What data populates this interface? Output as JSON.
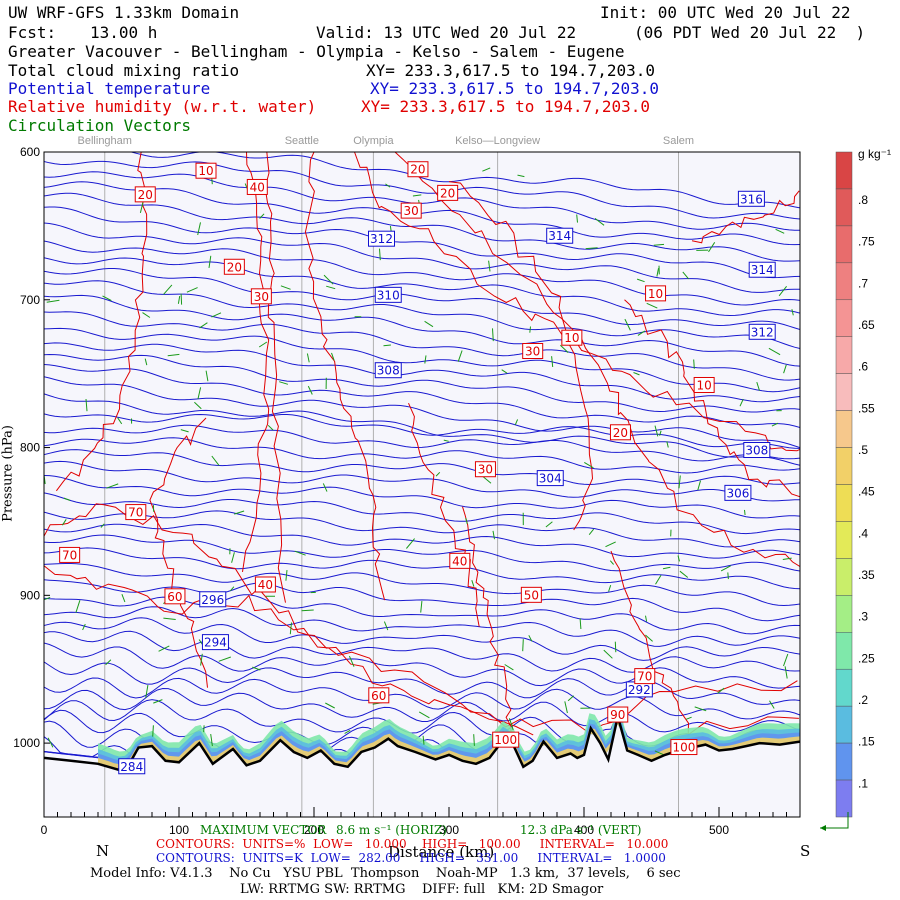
{
  "header": {
    "model_title": "UW WRF-GFS 1.33km Domain",
    "init": "Init: 00 UTC Wed 20 Jul 22",
    "fcst_label": "Fcst:",
    "fcst_value": "13.00 h",
    "valid": "Valid: 13 UTC Wed 20 Jul 22",
    "valid_local": "(06 PDT Wed 20 Jul 22  )",
    "region": "Greater Vacouver - Bellingham - Olympia - Kelso - Salem - Eugene",
    "field1": "Total cloud mixing ratio",
    "field1_xy": "XY= 233.3,617.5 to 194.7,203.0",
    "field2": "Potential temperature",
    "field2_xy": "XY= 233.3,617.5 to 194.7,203.0",
    "field3": "Relative humidity (w.r.t. water)",
    "field3_xy": "XY= 233.3,617.5 to 194.7,203.0",
    "field4": "Circulation Vectors"
  },
  "cities": [
    "Bellingham",
    "Seattle",
    "Olympia",
    "Kelso—Longview",
    "Salem"
  ],
  "chart_data": {
    "type": "cross-section",
    "xlabel": "Distance (km)",
    "ylabel": "Pressure (hPa)",
    "xlim": [
      0,
      560
    ],
    "ylim": [
      1050,
      600
    ],
    "x_ticks": [
      0,
      100,
      200,
      300,
      400,
      500
    ],
    "y_ticks": [
      600,
      700,
      800,
      900,
      1000
    ],
    "left_end": "N",
    "right_end": "S",
    "cloud_colorbar": {
      "unit": "g kg⁻¹",
      "ticks": [
        ".8",
        ".75",
        ".7",
        ".65",
        ".6",
        ".55",
        ".5",
        ".45",
        ".4",
        ".35",
        ".3",
        ".25",
        ".2",
        ".15",
        ".1"
      ],
      "colors": [
        "#d94545",
        "#e05a5a",
        "#e86c6c",
        "#ee8080",
        "#f49494",
        "#f7a9a9",
        "#f8bcbc",
        "#f6c88c",
        "#f2d068",
        "#eedd55",
        "#e3ea58",
        "#c9ee6a",
        "#a4ee86",
        "#7fe8aa",
        "#62d8cc",
        "#5abce0",
        "#6094ee",
        "#7d7df0"
      ]
    },
    "theta_labels": [
      {
        "v": "316",
        "x": 524,
        "p": 632
      },
      {
        "v": "314",
        "x": 382,
        "p": 657
      },
      {
        "v": "314",
        "x": 532,
        "p": 680
      },
      {
        "v": "312",
        "x": 250,
        "p": 659
      },
      {
        "v": "312",
        "x": 532,
        "p": 722
      },
      {
        "v": "310",
        "x": 255,
        "p": 697
      },
      {
        "v": "308",
        "x": 255,
        "p": 748
      },
      {
        "v": "308",
        "x": 528,
        "p": 802
      },
      {
        "v": "306",
        "x": 514,
        "p": 831
      },
      {
        "v": "304",
        "x": 375,
        "p": 821
      },
      {
        "v": "296",
        "x": 125,
        "p": 903
      },
      {
        "v": "294",
        "x": 127,
        "p": 932
      },
      {
        "v": "292",
        "x": 441,
        "p": 964
      },
      {
        "v": "284",
        "x": 65,
        "p": 1016
      }
    ],
    "rh_labels": [
      {
        "v": "10",
        "x": 120,
        "p": 613
      },
      {
        "v": "20",
        "x": 75,
        "p": 629
      },
      {
        "v": "40",
        "x": 158,
        "p": 624
      },
      {
        "v": "20",
        "x": 277,
        "p": 612
      },
      {
        "v": "20",
        "x": 299,
        "p": 628
      },
      {
        "v": "30",
        "x": 272,
        "p": 640
      },
      {
        "v": "20",
        "x": 141,
        "p": 678
      },
      {
        "v": "30",
        "x": 161,
        "p": 698
      },
      {
        "v": "10",
        "x": 453,
        "p": 696
      },
      {
        "v": "10",
        "x": 391,
        "p": 726
      },
      {
        "v": "30",
        "x": 362,
        "p": 735
      },
      {
        "v": "10",
        "x": 489,
        "p": 758
      },
      {
        "v": "20",
        "x": 427,
        "p": 790
      },
      {
        "v": "30",
        "x": 327,
        "p": 815
      },
      {
        "v": "70",
        "x": 68,
        "p": 844
      },
      {
        "v": "70",
        "x": 19,
        "p": 873
      },
      {
        "v": "40",
        "x": 308,
        "p": 877
      },
      {
        "v": "60",
        "x": 97,
        "p": 901
      },
      {
        "v": "40",
        "x": 164,
        "p": 893
      },
      {
        "v": "50",
        "x": 361,
        "p": 900
      },
      {
        "v": "70",
        "x": 445,
        "p": 955
      },
      {
        "v": "60",
        "x": 248,
        "p": 968
      },
      {
        "v": "90",
        "x": 425,
        "p": 981
      },
      {
        "v": "100",
        "x": 342,
        "p": 998
      },
      {
        "v": "100",
        "x": 474,
        "p": 1003
      }
    ]
  },
  "footer": {
    "max_vector": "MAXIMUM VECTOR",
    "horiz": "8.6 m s⁻¹ (HORIZ)",
    "vert": "12.3 dPa s⁻¹ (VERT)",
    "rh_contours": "CONTOURS:  UNITS=%  LOW=   10.000    HIGH=   100.00     INTERVAL=   10.000",
    "th_contours": "CONTOURS:  UNITS=K  LOW=  282.00     HIGH=   331.00     INTERVAL=   1.0000",
    "model_info": "Model Info: V4.1.3    No Cu   YSU PBL  Thompson    Noah-MP   1.3 km,  37 levels,    6 sec",
    "phys_info": "LW: RRTMG SW: RRTMG    DIFF: full   KM: 2D Smagor"
  }
}
